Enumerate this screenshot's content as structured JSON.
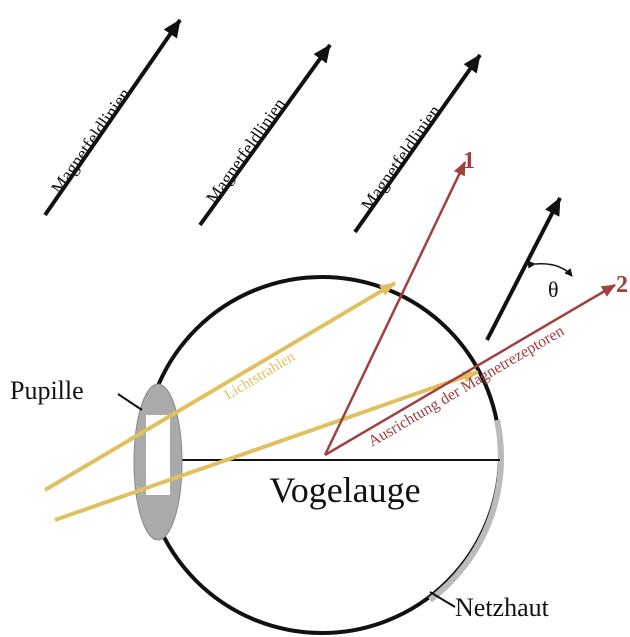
{
  "field_lines": [
    "Magnetfeldlinien",
    "Magnetfeldlinien",
    "Magnetfeldlinien"
  ],
  "labels": {
    "pupil": "Pupille",
    "eye": "Vogelauge",
    "retina": "Netzhaut",
    "light": "Lichtstrahlen",
    "receptors": "Ausrichtung der Magnetrezeptoren",
    "ray_1": "1",
    "ray_2": "2",
    "angle": "θ"
  }
}
